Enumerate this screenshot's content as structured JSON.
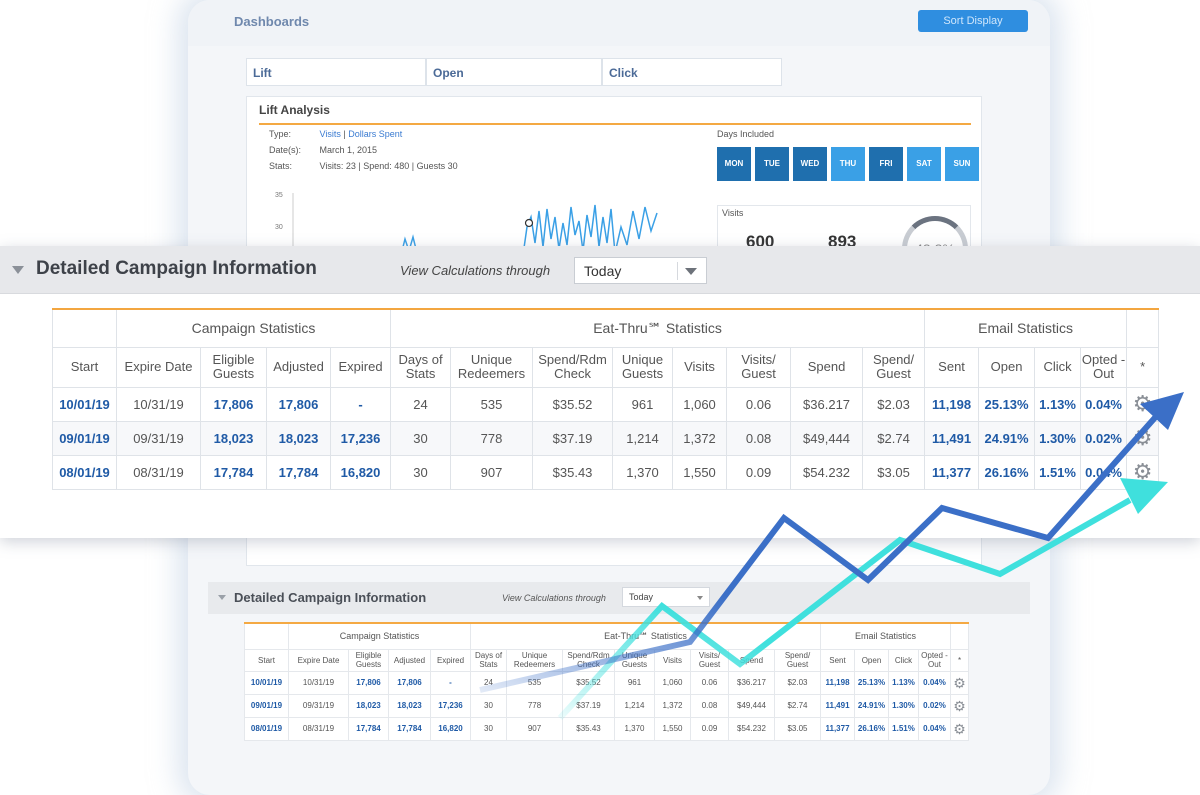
{
  "background": {
    "title": "Dashboards",
    "button_label": "Sort Display",
    "tabs": [
      "Lift",
      "Open",
      "Click"
    ],
    "lift": {
      "heading": "Lift Analysis",
      "type_label": "Type:",
      "type_value_1": "Visits",
      "type_sep": "|",
      "type_value_2": "Dollars Spent",
      "dates_label": "Date(s):",
      "dates_value": "March 1, 2015",
      "stats_label": "Stats:",
      "stats_value": "Visits: 23 | Spend: 480 | Guests 30",
      "days_label": "Days Included",
      "days": [
        "MON",
        "TUE",
        "WED",
        "THU",
        "FRI",
        "SAT",
        "SUN"
      ],
      "visits_label": "Visits",
      "visits_1": "600",
      "visits_2": "893",
      "ring_value": "48.8%",
      "chart_ticks": [
        "35",
        "30"
      ]
    },
    "small_section": {
      "title": "Detailed Campaign Information",
      "view_label": "View Calculations through",
      "select_value": "Today"
    }
  },
  "section": {
    "title": "Detailed Campaign Information",
    "view_label": "View Calculations through",
    "select_value": "Today"
  },
  "table": {
    "groups": [
      {
        "label": "",
        "span": 1
      },
      {
        "label": "Campaign Statistics",
        "span": 4
      },
      {
        "label": "Eat-Thru℠ Statistics",
        "span": 8
      },
      {
        "label": "Email Statistics",
        "span": 4
      },
      {
        "label": "",
        "span": 1
      }
    ],
    "columns": [
      "Start",
      "Expire Date",
      "Eligible Guests",
      "Adjusted",
      "Expired",
      "Days of Stats",
      "Unique Redeemers",
      "Spend/Rdm Check",
      "Unique Guests",
      "Visits",
      "Visits/ Guest",
      "Spend",
      "Spend/ Guest",
      "Sent",
      "Open",
      "Click",
      "Opted -Out",
      "*"
    ],
    "rows": [
      [
        "10/01/19",
        "10/31/19",
        "17,806",
        "17,806",
        "-",
        "24",
        "535",
        "$35.52",
        "961",
        "1,060",
        "0.06",
        "$36.217",
        "$2.03",
        "11,198",
        "25.13%",
        "1.13%",
        "0.04%"
      ],
      [
        "09/01/19",
        "09/31/19",
        "18,023",
        "18,023",
        "17,236",
        "30",
        "778",
        "$37.19",
        "1,214",
        "1,372",
        "0.08",
        "$49,444",
        "$2.74",
        "11,491",
        "24.91%",
        "1.30%",
        "0.02%"
      ],
      [
        "08/01/19",
        "08/31/19",
        "17,784",
        "17,784",
        "16,820",
        "30",
        "907",
        "$35.43",
        "1,370",
        "1,550",
        "0.09",
        "$54.232",
        "$3.05",
        "11,377",
        "26.16%",
        "1.51%",
        "0.04%"
      ]
    ],
    "small_rows": [
      [
        "10/01/19",
        "10/31/19",
        "17,806",
        "17,806",
        "-",
        "24",
        "535",
        "$35.52",
        "961",
        "1,060",
        "0.06",
        "$36.217",
        "$2.03",
        "11,198",
        "25.13%",
        "1.13%",
        "0.04%"
      ],
      [
        "09/01/19",
        "09/31/19",
        "18,023",
        "18,023",
        "17,236",
        "30",
        "778",
        "$37.19",
        "1,214",
        "1,372",
        "0.08",
        "$49,444",
        "$2.74",
        "11,491",
        "24.91%",
        "1.30%",
        "0.02%"
      ],
      [
        "08/01/19",
        "08/31/19",
        "17,784",
        "17,784",
        "16,820",
        "30",
        "907",
        "$35.43",
        "1,370",
        "1,550",
        "0.09",
        "$54.232",
        "$3.05",
        "11,377",
        "26.16%",
        "1.51%",
        "0.04%"
      ]
    ],
    "gear_icon": "gear-icon"
  },
  "colors": {
    "accent_orange": "#f3a640",
    "link_blue": "#1f5aa6",
    "arrow_blue": "#3b6fc7",
    "arrow_teal": "#3fe0dd"
  }
}
